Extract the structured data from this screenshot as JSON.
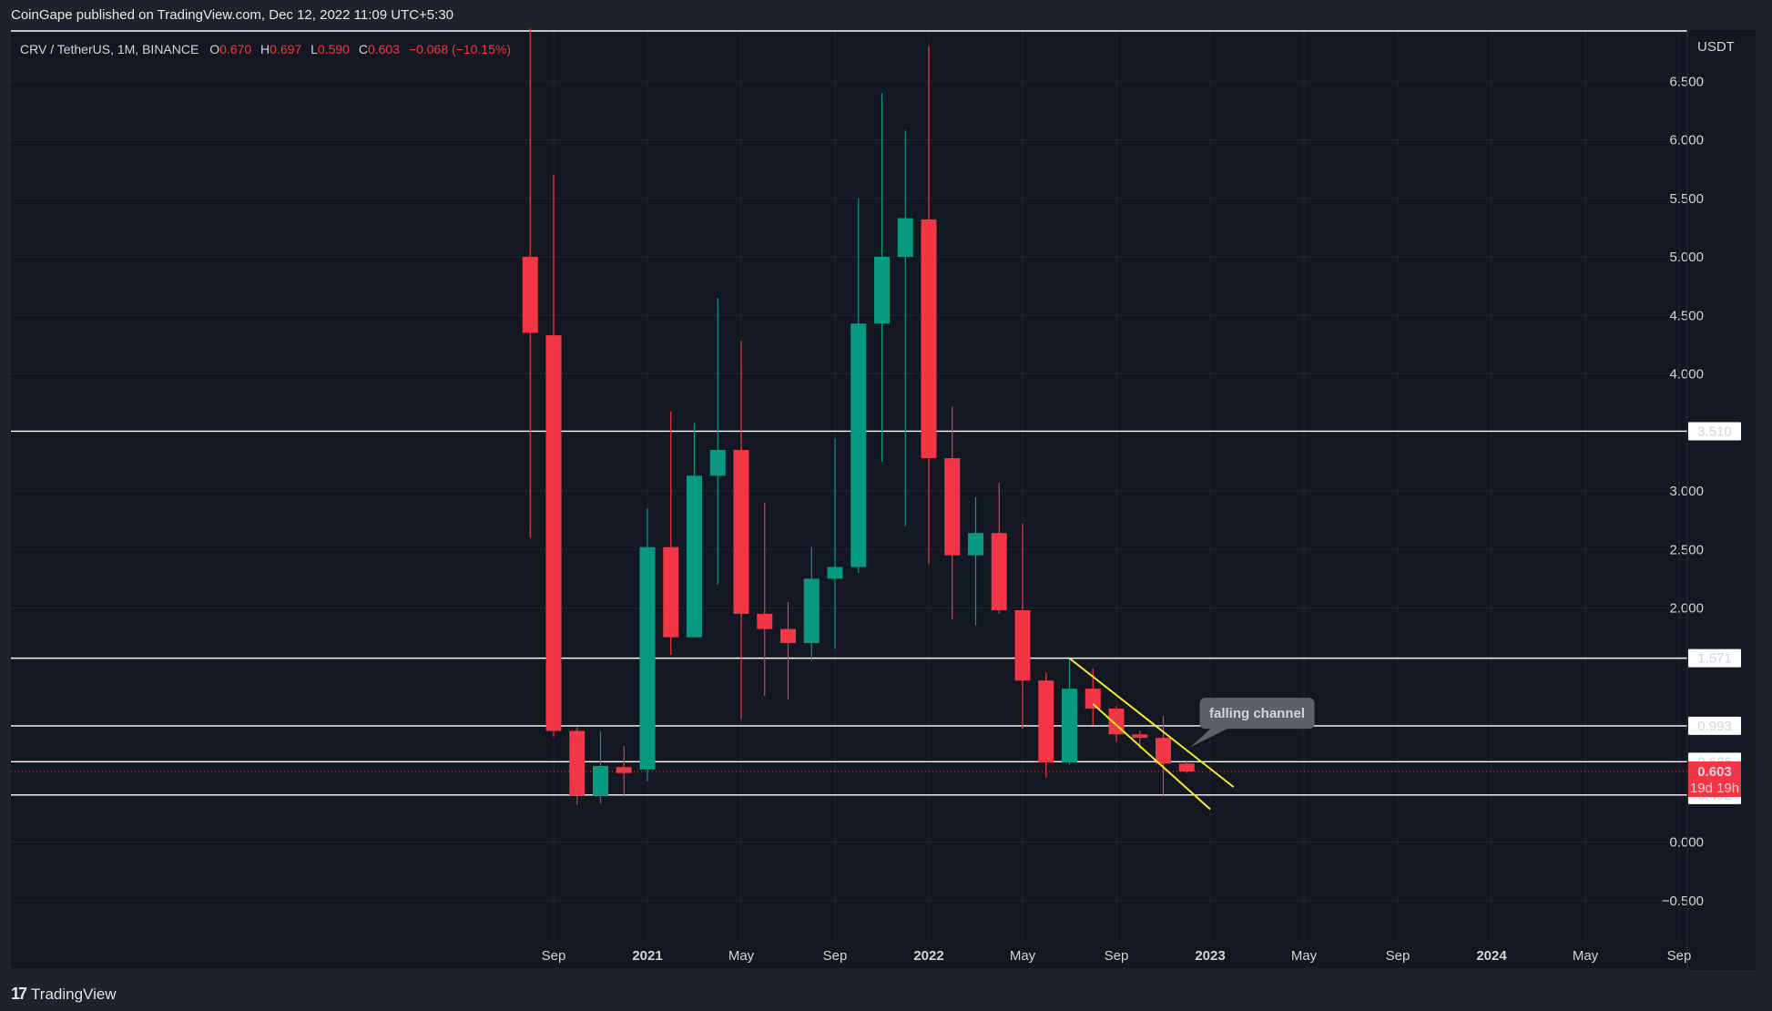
{
  "publisher": "CoinGape published on TradingView.com, Dec 12, 2022 11:09 UTC+5:30",
  "footer": {
    "brand": "TradingView"
  },
  "colors": {
    "up": "#089981",
    "down": "#f23645",
    "bg": "#131722",
    "outer": "#1e222d",
    "channel": "#f5e92c",
    "hline": "#ffffff"
  },
  "legend": {
    "symbol": "CRV / TetherUS, 1M, BINANCE",
    "o_label": "O",
    "o_val": "0.670",
    "h_label": "H",
    "h_val": "0.697",
    "l_label": "L",
    "l_val": "0.590",
    "c_label": "C",
    "c_val": "0.603",
    "change": "−0.068 (−10.15%)"
  },
  "chart_data": {
    "type": "candlestick",
    "timeframe": "1M",
    "currency": "USDT",
    "ylim": [
      -0.75,
      6.95
    ],
    "y_ticks": [
      "6.500",
      "6.000",
      "5.500",
      "5.000",
      "4.500",
      "4.000",
      "3.000",
      "2.500",
      "2.000",
      "0.000",
      "−0.500"
    ],
    "y_tick_values": [
      6.5,
      6.0,
      5.5,
      5.0,
      4.5,
      4.0,
      3.0,
      2.5,
      2.0,
      0.0,
      -0.5
    ],
    "x_ticks": [
      "Sep",
      "2021",
      "May",
      "Sep",
      "2022",
      "May",
      "Sep",
      "2023",
      "May",
      "Sep",
      "2024",
      "May",
      "Sep"
    ],
    "x_tick_months": [
      "2020-09",
      "2021-01",
      "2021-05",
      "2021-09",
      "2022-01",
      "2022-05",
      "2022-09",
      "2023-01",
      "2023-05",
      "2023-09",
      "2024-01",
      "2024-05",
      "2024-09"
    ],
    "candles": [
      {
        "month": "2020-08",
        "o": 5.0,
        "h": 6.95,
        "l": 2.6,
        "c": 4.35
      },
      {
        "month": "2020-09",
        "o": 4.33,
        "h": 5.7,
        "l": 0.9,
        "c": 0.95
      },
      {
        "month": "2020-10",
        "o": 0.95,
        "h": 0.98,
        "l": 0.32,
        "c": 0.4
      },
      {
        "month": "2020-11",
        "o": 0.4,
        "h": 0.95,
        "l": 0.33,
        "c": 0.65
      },
      {
        "month": "2020-12",
        "o": 0.64,
        "h": 0.82,
        "l": 0.4,
        "c": 0.59
      },
      {
        "month": "2021-01",
        "o": 0.62,
        "h": 2.85,
        "l": 0.52,
        "c": 2.52
      },
      {
        "month": "2021-02",
        "o": 2.52,
        "h": 3.68,
        "l": 1.6,
        "c": 1.75
      },
      {
        "month": "2021-03",
        "o": 1.75,
        "h": 3.58,
        "l": 1.75,
        "c": 3.13
      },
      {
        "month": "2021-04",
        "o": 3.13,
        "h": 4.65,
        "l": 2.2,
        "c": 3.35
      },
      {
        "month": "2021-05",
        "o": 3.35,
        "h": 4.28,
        "l": 1.05,
        "c": 1.95
      },
      {
        "month": "2021-06",
        "o": 1.95,
        "h": 2.9,
        "l": 1.25,
        "c": 1.82
      },
      {
        "month": "2021-07",
        "o": 1.82,
        "h": 2.05,
        "l": 1.22,
        "c": 1.7
      },
      {
        "month": "2021-08",
        "o": 1.7,
        "h": 2.52,
        "l": 1.55,
        "c": 2.25
      },
      {
        "month": "2021-09",
        "o": 2.25,
        "h": 3.45,
        "l": 1.65,
        "c": 2.35
      },
      {
        "month": "2021-10",
        "o": 2.35,
        "h": 5.5,
        "l": 2.3,
        "c": 4.43
      },
      {
        "month": "2021-11",
        "o": 4.43,
        "h": 6.4,
        "l": 3.25,
        "c": 5.0
      },
      {
        "month": "2021-12",
        "o": 5.0,
        "h": 6.08,
        "l": 2.7,
        "c": 5.33
      },
      {
        "month": "2022-01",
        "o": 5.32,
        "h": 6.8,
        "l": 2.38,
        "c": 3.28
      },
      {
        "month": "2022-02",
        "o": 3.28,
        "h": 3.72,
        "l": 1.9,
        "c": 2.45
      },
      {
        "month": "2022-03",
        "o": 2.45,
        "h": 2.95,
        "l": 1.85,
        "c": 2.64
      },
      {
        "month": "2022-04",
        "o": 2.64,
        "h": 3.07,
        "l": 1.95,
        "c": 1.98
      },
      {
        "month": "2022-05",
        "o": 1.98,
        "h": 2.72,
        "l": 0.97,
        "c": 1.38
      },
      {
        "month": "2022-06",
        "o": 1.38,
        "h": 1.45,
        "l": 0.55,
        "c": 0.68
      },
      {
        "month": "2022-07",
        "o": 0.68,
        "h": 1.57,
        "l": 0.66,
        "c": 1.31
      },
      {
        "month": "2022-08",
        "o": 1.31,
        "h": 1.48,
        "l": 1.0,
        "c": 1.14
      },
      {
        "month": "2022-09",
        "o": 1.14,
        "h": 1.16,
        "l": 0.86,
        "c": 0.92
      },
      {
        "month": "2022-10",
        "o": 0.92,
        "h": 0.95,
        "l": 0.8,
        "c": 0.89
      },
      {
        "month": "2022-11",
        "o": 0.89,
        "h": 1.08,
        "l": 0.4,
        "c": 0.67
      },
      {
        "month": "2022-12",
        "o": 0.67,
        "h": 0.697,
        "l": 0.59,
        "c": 0.603
      }
    ],
    "horizontal_levels": [
      {
        "value": 6.93,
        "label": ""
      },
      {
        "value": 3.51,
        "label": "3.510"
      },
      {
        "value": 1.571,
        "label": "1.571"
      },
      {
        "value": 0.993,
        "label": "0.993"
      },
      {
        "value": 0.686,
        "label": "0.686"
      },
      {
        "value": 0.402,
        "label": "0.402"
      }
    ],
    "current_price": {
      "value": 0.603,
      "label": "0.603",
      "countdown": "19d 19h"
    },
    "channel": {
      "upper": [
        {
          "month": "2022-07",
          "price": 1.57
        },
        {
          "month": "2023-02",
          "price": 0.47
        }
      ],
      "lower": [
        {
          "month": "2022-08",
          "price": 1.18
        },
        {
          "month": "2023-01",
          "price": 0.28
        }
      ]
    },
    "annotation": {
      "text": "falling channel",
      "month": "2023-03",
      "price": 1.1,
      "target_month": "2022-12",
      "target_price": 0.81
    }
  }
}
